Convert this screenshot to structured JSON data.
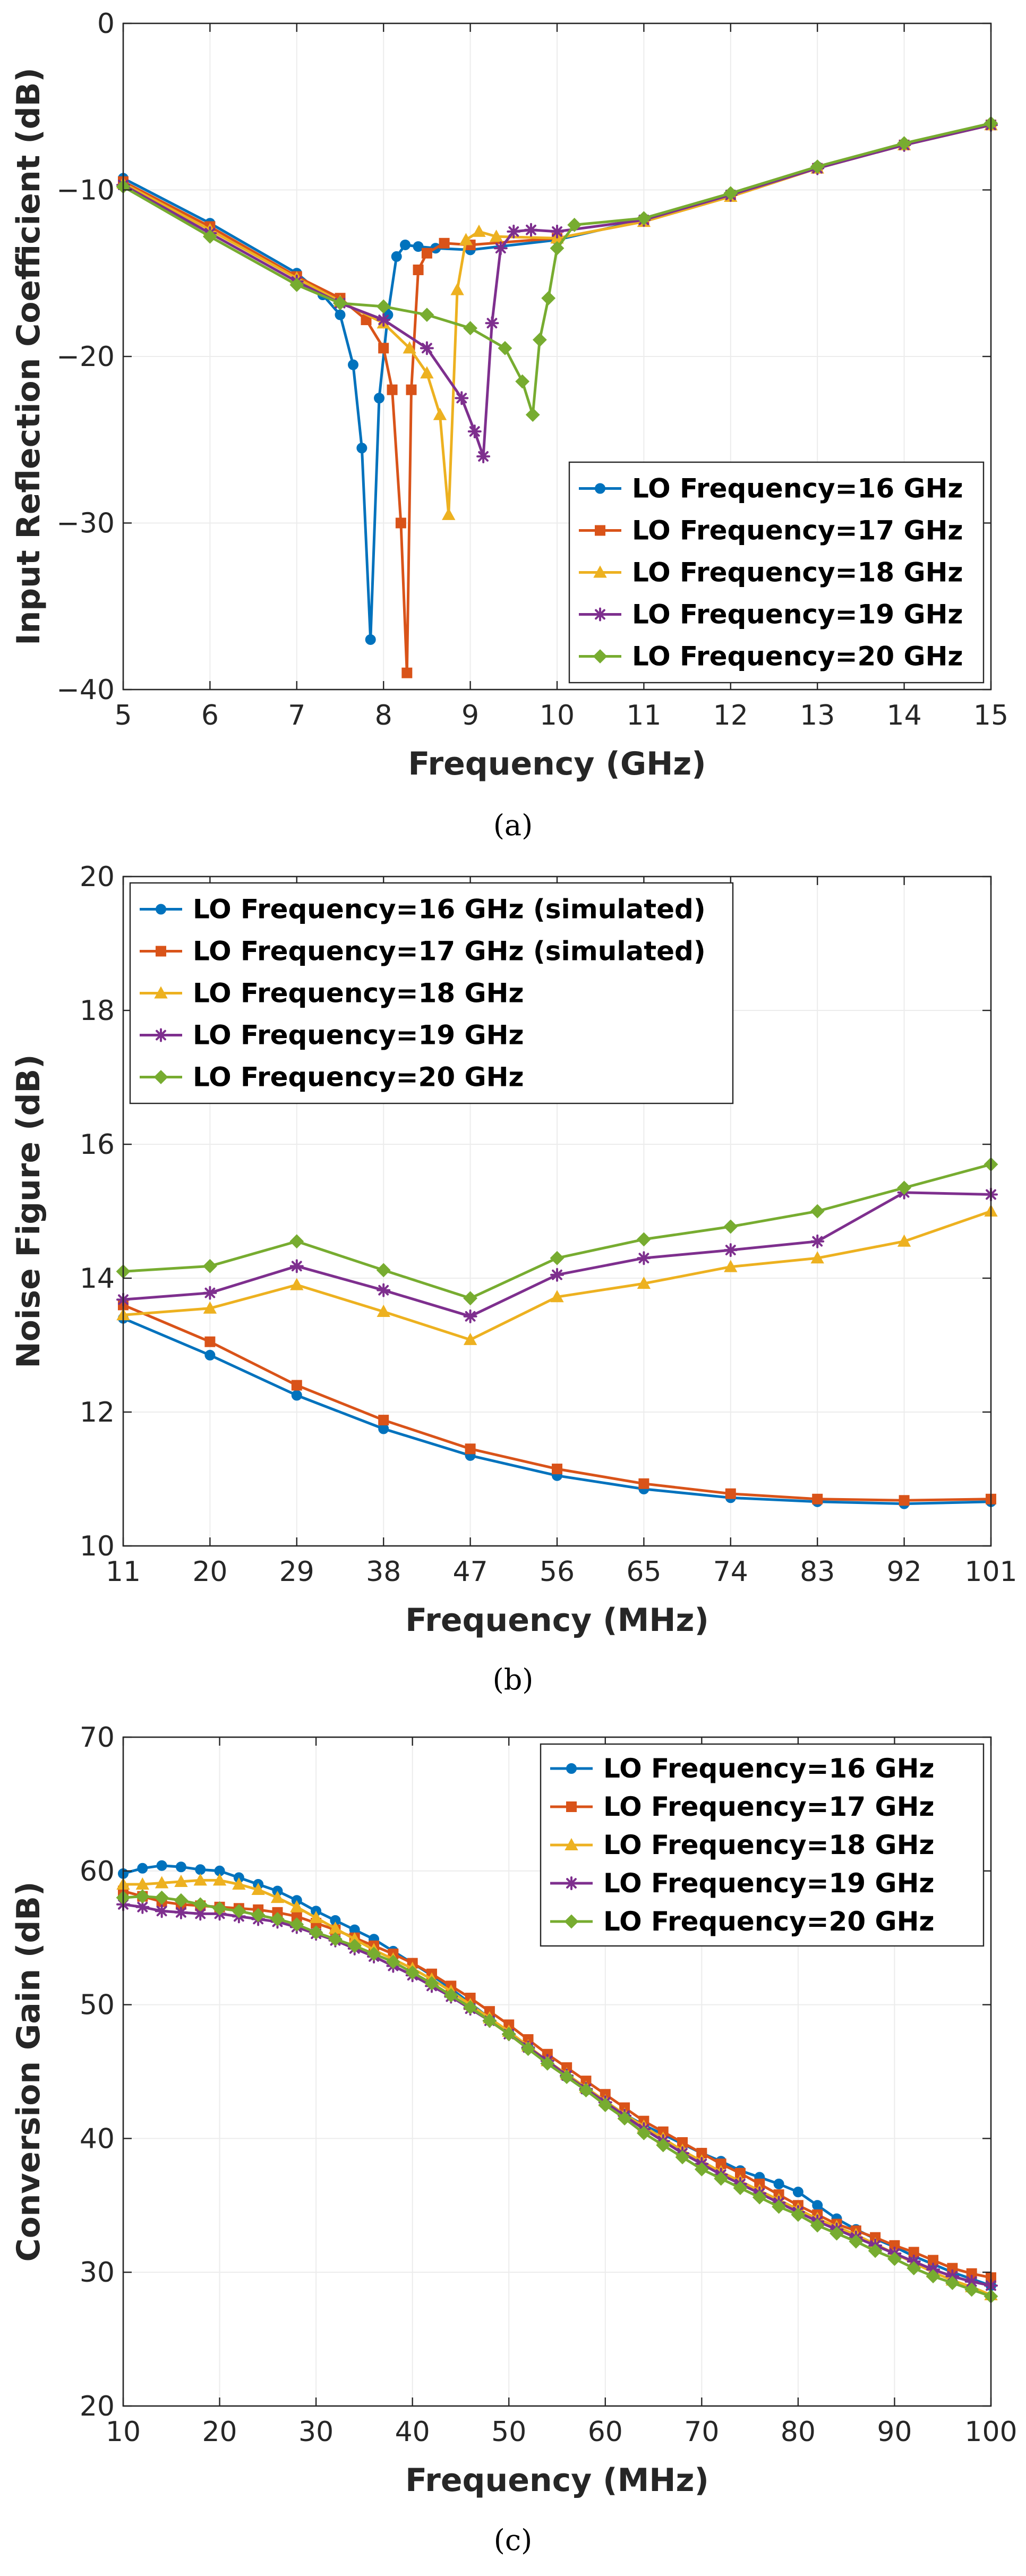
{
  "colors": {
    "s16": "#0072BD",
    "s17": "#D95319",
    "s18": "#EDB120",
    "s19": "#7E2F8E",
    "s20": "#77AC30"
  },
  "chart_data": [
    {
      "id": "a",
      "type": "line",
      "caption": "(a)",
      "xlabel": "Frequency (GHz)",
      "ylabel": "Input Reflection Coefficient (dB)",
      "xlim": [
        5,
        15
      ],
      "ylim": [
        -40,
        0
      ],
      "xticks": [
        5,
        6,
        7,
        8,
        9,
        10,
        11,
        12,
        13,
        14,
        15
      ],
      "yticks": [
        -40,
        -30,
        -20,
        -10,
        0
      ],
      "xtick_labels": [
        "5",
        "6",
        "7",
        "8",
        "9",
        "10",
        "11",
        "12",
        "13",
        "14",
        "15"
      ],
      "ytick_labels": [
        "−40",
        "−30",
        "−20",
        "−10",
        "0"
      ],
      "legend_position": "bottom-right",
      "series": [
        {
          "name": "LO Frequency=16 GHz",
          "marker": "circle",
          "color_key": "s16",
          "x": [
            5.0,
            6.0,
            7.0,
            7.3,
            7.5,
            7.65,
            7.75,
            7.85,
            7.95,
            8.05,
            8.15,
            8.25,
            8.4,
            8.6,
            9.0,
            10.0,
            11.0,
            12.0,
            13.0,
            14.0,
            15.0
          ],
          "y": [
            -9.3,
            -12.0,
            -15.0,
            -16.3,
            -17.5,
            -20.5,
            -25.5,
            -37.0,
            -22.5,
            -17.5,
            -14.0,
            -13.3,
            -13.4,
            -13.5,
            -13.6,
            -13.0,
            -11.8,
            -10.3,
            -8.6,
            -7.3,
            -6.1
          ]
        },
        {
          "name": "LO Frequency=17 GHz",
          "marker": "square",
          "color_key": "s17",
          "x": [
            5.0,
            6.0,
            7.0,
            7.5,
            7.8,
            8.0,
            8.1,
            8.2,
            8.27,
            8.32,
            8.4,
            8.5,
            8.7,
            9.0,
            10.0,
            11.0,
            12.0,
            13.0,
            14.0,
            15.0
          ],
          "y": [
            -9.5,
            -12.2,
            -15.2,
            -16.5,
            -17.8,
            -19.5,
            -22.0,
            -30.0,
            -39.0,
            -22.0,
            -14.8,
            -13.8,
            -13.2,
            -13.3,
            -12.9,
            -11.9,
            -10.4,
            -8.7,
            -7.3,
            -6.1
          ]
        },
        {
          "name": "LO Frequency=18 GHz",
          "marker": "triangle",
          "color_key": "s18",
          "x": [
            5.0,
            6.0,
            7.0,
            7.5,
            8.0,
            8.3,
            8.5,
            8.65,
            8.75,
            8.85,
            8.95,
            9.1,
            9.3,
            10.0,
            11.0,
            12.0,
            13.0,
            14.0,
            15.0
          ],
          "y": [
            -9.6,
            -12.4,
            -15.3,
            -16.7,
            -18.0,
            -19.5,
            -21.0,
            -23.5,
            -29.5,
            -16.0,
            -13.0,
            -12.5,
            -12.8,
            -12.9,
            -11.9,
            -10.4,
            -8.7,
            -7.3,
            -6.1
          ]
        },
        {
          "name": "LO Frequency=19 GHz",
          "marker": "asterisk",
          "color_key": "s19",
          "x": [
            5.0,
            6.0,
            7.0,
            7.5,
            8.0,
            8.5,
            8.9,
            9.05,
            9.15,
            9.25,
            9.35,
            9.5,
            9.7,
            10.0,
            11.0,
            12.0,
            13.0,
            14.0,
            15.0
          ],
          "y": [
            -9.7,
            -12.6,
            -15.5,
            -16.8,
            -17.8,
            -19.5,
            -22.5,
            -24.5,
            -26.0,
            -18.0,
            -13.5,
            -12.5,
            -12.4,
            -12.5,
            -11.8,
            -10.3,
            -8.7,
            -7.3,
            -6.1
          ]
        },
        {
          "name": "LO Frequency=20 GHz",
          "marker": "diamond",
          "color_key": "s20",
          "x": [
            5.0,
            6.0,
            7.0,
            7.5,
            8.0,
            8.5,
            9.0,
            9.4,
            9.6,
            9.72,
            9.8,
            9.9,
            10.0,
            10.2,
            11.0,
            12.0,
            13.0,
            14.0,
            15.0
          ],
          "y": [
            -9.8,
            -12.8,
            -15.7,
            -16.8,
            -17.0,
            -17.5,
            -18.3,
            -19.5,
            -21.5,
            -23.5,
            -19.0,
            -16.5,
            -13.5,
            -12.1,
            -11.7,
            -10.2,
            -8.6,
            -7.2,
            -6.0
          ]
        }
      ]
    },
    {
      "id": "b",
      "type": "line",
      "caption": "(b)",
      "xlabel": "Frequency (MHz)",
      "ylabel": "Noise Figure (dB)",
      "xlim": [
        11,
        101
      ],
      "ylim": [
        10,
        20
      ],
      "xticks": [
        11,
        20,
        29,
        38,
        47,
        56,
        65,
        74,
        83,
        92,
        101
      ],
      "yticks": [
        10,
        12,
        14,
        16,
        18,
        20
      ],
      "xtick_labels": [
        "11",
        "20",
        "29",
        "38",
        "47",
        "56",
        "65",
        "74",
        "83",
        "92",
        "101"
      ],
      "ytick_labels": [
        "10",
        "12",
        "14",
        "16",
        "18",
        "20"
      ],
      "legend_position": "top-left",
      "series": [
        {
          "name": "LO Frequency=16 GHz (simulated)",
          "marker": "circle",
          "color_key": "s16",
          "x": [
            11,
            20,
            29,
            38,
            47,
            56,
            65,
            74,
            83,
            92,
            101
          ],
          "y": [
            13.4,
            12.85,
            12.25,
            11.75,
            11.35,
            11.05,
            10.85,
            10.72,
            10.66,
            10.63,
            10.66
          ]
        },
        {
          "name": "LO Frequency=17 GHz (simulated)",
          "marker": "square",
          "color_key": "s17",
          "x": [
            11,
            20,
            29,
            38,
            47,
            56,
            65,
            74,
            83,
            92,
            101
          ],
          "y": [
            13.6,
            13.05,
            12.4,
            11.88,
            11.45,
            11.15,
            10.93,
            10.78,
            10.7,
            10.68,
            10.7
          ]
        },
        {
          "name": "LO Frequency=18 GHz",
          "marker": "triangle",
          "color_key": "s18",
          "x": [
            11,
            20,
            29,
            38,
            47,
            56,
            65,
            74,
            83,
            92,
            101
          ],
          "y": [
            13.45,
            13.55,
            13.9,
            13.5,
            13.08,
            13.72,
            13.92,
            14.17,
            14.3,
            14.55,
            15.0
          ]
        },
        {
          "name": "LO Frequency=19 GHz",
          "marker": "asterisk",
          "color_key": "s19",
          "x": [
            11,
            20,
            29,
            38,
            47,
            56,
            65,
            74,
            83,
            92,
            101
          ],
          "y": [
            13.68,
            13.78,
            14.18,
            13.82,
            13.43,
            14.05,
            14.3,
            14.42,
            14.55,
            15.28,
            15.25
          ]
        },
        {
          "name": "LO Frequency=20 GHz",
          "marker": "diamond",
          "color_key": "s20",
          "x": [
            11,
            20,
            29,
            38,
            47,
            56,
            65,
            74,
            83,
            92,
            101
          ],
          "y": [
            14.1,
            14.18,
            14.55,
            14.12,
            13.7,
            14.3,
            14.58,
            14.77,
            15.0,
            15.35,
            15.7
          ]
        }
      ]
    },
    {
      "id": "c",
      "type": "line",
      "caption": "(c)",
      "xlabel": "Frequency (MHz)",
      "ylabel": "Conversion Gain (dB)",
      "xlim": [
        10,
        100
      ],
      "ylim": [
        20,
        70
      ],
      "xticks": [
        10,
        20,
        30,
        40,
        50,
        60,
        70,
        80,
        90,
        100
      ],
      "yticks": [
        20,
        30,
        40,
        50,
        60,
        70
      ],
      "xtick_labels": [
        "10",
        "20",
        "30",
        "40",
        "50",
        "60",
        "70",
        "80",
        "90",
        "100"
      ],
      "ytick_labels": [
        "20",
        "30",
        "40",
        "50",
        "60",
        "70"
      ],
      "legend_position": "top-right",
      "series": [
        {
          "name": "LO Frequency=16 GHz",
          "marker": "circle",
          "color_key": "s16",
          "x": [
            10,
            12,
            14,
            16,
            18,
            20,
            22,
            24,
            26,
            28,
            30,
            32,
            34,
            36,
            38,
            40,
            42,
            44,
            46,
            48,
            50,
            52,
            54,
            56,
            58,
            60,
            62,
            64,
            66,
            68,
            70,
            72,
            74,
            76,
            78,
            80,
            82,
            84,
            86,
            88,
            90,
            92,
            94,
            96,
            98,
            100
          ],
          "y": [
            59.8,
            60.2,
            60.4,
            60.3,
            60.1,
            60.0,
            59.5,
            59.0,
            58.5,
            57.8,
            57.0,
            56.3,
            55.6,
            54.9,
            54.0,
            53.1,
            52.2,
            51.2,
            50.1,
            49.0,
            47.9,
            46.8,
            45.7,
            44.6,
            43.6,
            42.6,
            41.8,
            41.0,
            40.3,
            39.6,
            38.9,
            38.3,
            37.6,
            37.1,
            36.6,
            36.0,
            35.0,
            34.0,
            33.2,
            32.5,
            31.9,
            31.2,
            30.6,
            30.0,
            29.5,
            29.0
          ]
        },
        {
          "name": "LO Frequency=17 GHz",
          "marker": "square",
          "color_key": "s17",
          "x": [
            10,
            12,
            14,
            16,
            18,
            20,
            22,
            24,
            26,
            28,
            30,
            32,
            34,
            36,
            38,
            40,
            42,
            44,
            46,
            48,
            50,
            52,
            54,
            56,
            58,
            60,
            62,
            64,
            66,
            68,
            70,
            72,
            74,
            76,
            78,
            80,
            82,
            84,
            86,
            88,
            90,
            92,
            94,
            96,
            98,
            100
          ],
          "y": [
            58.5,
            58.1,
            57.7,
            57.5,
            57.4,
            57.3,
            57.2,
            57.1,
            56.9,
            56.6,
            56.1,
            55.6,
            55.0,
            54.4,
            53.8,
            53.1,
            52.3,
            51.4,
            50.5,
            49.5,
            48.5,
            47.4,
            46.3,
            45.3,
            44.3,
            43.3,
            42.3,
            41.3,
            40.5,
            39.7,
            38.9,
            38.1,
            37.4,
            36.6,
            35.8,
            35.0,
            34.3,
            33.6,
            33.1,
            32.6,
            32.0,
            31.5,
            30.9,
            30.3,
            29.9,
            29.6
          ]
        },
        {
          "name": "LO Frequency=18 GHz",
          "marker": "triangle",
          "color_key": "s18",
          "x": [
            10,
            12,
            14,
            16,
            18,
            20,
            22,
            24,
            26,
            28,
            30,
            32,
            34,
            36,
            38,
            40,
            42,
            44,
            46,
            48,
            50,
            52,
            54,
            56,
            58,
            60,
            62,
            64,
            66,
            68,
            70,
            72,
            74,
            76,
            78,
            80,
            82,
            84,
            86,
            88,
            90,
            92,
            94,
            96,
            98,
            100
          ],
          "y": [
            59.0,
            59.0,
            59.1,
            59.2,
            59.3,
            59.3,
            59.0,
            58.6,
            58.0,
            57.3,
            56.5,
            55.7,
            54.9,
            54.1,
            53.4,
            52.7,
            51.9,
            51.0,
            50.0,
            49.0,
            48.0,
            46.9,
            45.8,
            44.8,
            43.8,
            42.8,
            41.8,
            40.9,
            40.0,
            39.1,
            38.3,
            37.5,
            36.8,
            36.1,
            35.4,
            34.7,
            34.0,
            33.4,
            32.8,
            32.1,
            31.4,
            30.7,
            30.0,
            29.4,
            28.9,
            28.3
          ]
        },
        {
          "name": "LO Frequency=19 GHz",
          "marker": "asterisk",
          "color_key": "s19",
          "x": [
            10,
            12,
            14,
            16,
            18,
            20,
            22,
            24,
            26,
            28,
            30,
            32,
            34,
            36,
            38,
            40,
            42,
            44,
            46,
            48,
            50,
            52,
            54,
            56,
            58,
            60,
            62,
            64,
            66,
            68,
            70,
            72,
            74,
            76,
            78,
            80,
            82,
            84,
            86,
            88,
            90,
            92,
            94,
            96,
            98,
            100
          ],
          "y": [
            57.5,
            57.3,
            57.0,
            56.9,
            56.8,
            56.8,
            56.6,
            56.4,
            56.2,
            55.8,
            55.3,
            54.8,
            54.2,
            53.6,
            52.9,
            52.2,
            51.4,
            50.6,
            49.7,
            48.8,
            47.8,
            46.8,
            45.8,
            44.7,
            43.7,
            42.7,
            41.7,
            40.7,
            39.8,
            38.9,
            38.1,
            37.3,
            36.6,
            35.9,
            35.2,
            34.5,
            33.8,
            33.2,
            32.6,
            32.0,
            31.4,
            30.8,
            30.2,
            29.7,
            29.3,
            29.0
          ]
        },
        {
          "name": "LO Frequency=20 GHz",
          "marker": "diamond",
          "color_key": "s20",
          "x": [
            10,
            12,
            14,
            16,
            18,
            20,
            22,
            24,
            26,
            28,
            30,
            32,
            34,
            36,
            38,
            40,
            42,
            44,
            46,
            48,
            50,
            52,
            54,
            56,
            58,
            60,
            62,
            64,
            66,
            68,
            70,
            72,
            74,
            76,
            78,
            80,
            82,
            84,
            86,
            88,
            90,
            92,
            94,
            96,
            98,
            100
          ],
          "y": [
            58.0,
            58.1,
            58.0,
            57.8,
            57.5,
            57.2,
            57.0,
            56.7,
            56.4,
            56.0,
            55.4,
            54.9,
            54.4,
            53.8,
            53.2,
            52.4,
            51.6,
            50.7,
            49.8,
            48.8,
            47.8,
            46.7,
            45.6,
            44.6,
            43.6,
            42.5,
            41.5,
            40.4,
            39.5,
            38.6,
            37.7,
            37.0,
            36.3,
            35.6,
            34.9,
            34.3,
            33.5,
            32.9,
            32.3,
            31.6,
            31.0,
            30.3,
            29.7,
            29.2,
            28.7,
            28.2
          ]
        }
      ]
    }
  ]
}
